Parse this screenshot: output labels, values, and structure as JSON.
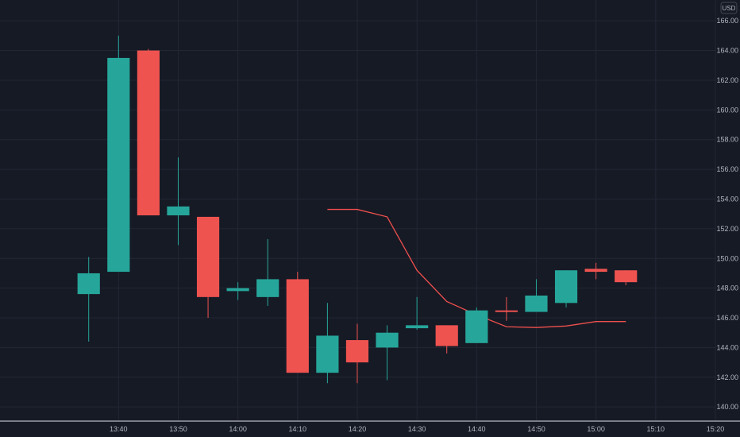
{
  "colors": {
    "background": "#161a25",
    "grid": "#232734",
    "up": "#26a69a",
    "down": "#ef5350",
    "line": "#f0504d",
    "axis_text": "#b2b5be"
  },
  "currency_label": "USD",
  "chart_data": {
    "type": "candlestick",
    "x_unit": "minutes",
    "candle_interval_minutes": 5,
    "xlim": [
      "13:22",
      "15:22"
    ],
    "ylim": [
      139.1,
      167.4
    ],
    "y_ticks": [
      "140.00",
      "142.00",
      "144.00",
      "146.00",
      "148.00",
      "150.00",
      "152.00",
      "154.00",
      "156.00",
      "158.00",
      "160.00",
      "162.00",
      "164.00",
      "166.00"
    ],
    "x_ticks": [
      "13:40",
      "13:50",
      "14:00",
      "14:10",
      "14:20",
      "14:30",
      "14:40",
      "14:50",
      "15:00",
      "15:10",
      "15:20"
    ],
    "candles": [
      {
        "time": "13:35",
        "open": 147.6,
        "high": 150.1,
        "low": 144.4,
        "close": 149.0
      },
      {
        "time": "13:40",
        "open": 149.1,
        "high": 165.0,
        "low": 149.1,
        "close": 163.5
      },
      {
        "time": "13:45",
        "open": 164.0,
        "high": 164.1,
        "low": 152.9,
        "close": 152.9
      },
      {
        "time": "13:50",
        "open": 152.9,
        "high": 156.8,
        "low": 150.9,
        "close": 153.5
      },
      {
        "time": "13:55",
        "open": 152.8,
        "high": 152.8,
        "low": 146.0,
        "close": 147.4
      },
      {
        "time": "14:00",
        "open": 147.8,
        "high": 148.4,
        "low": 147.2,
        "close": 148.0
      },
      {
        "time": "14:05",
        "open": 147.4,
        "high": 151.3,
        "low": 146.8,
        "close": 148.6
      },
      {
        "time": "14:10",
        "open": 148.6,
        "high": 149.1,
        "low": 142.3,
        "close": 142.3
      },
      {
        "time": "14:15",
        "open": 142.3,
        "high": 147.0,
        "low": 141.6,
        "close": 144.8
      },
      {
        "time": "14:20",
        "open": 144.5,
        "high": 145.6,
        "low": 141.6,
        "close": 143.0
      },
      {
        "time": "14:25",
        "open": 144.0,
        "high": 145.5,
        "low": 141.8,
        "close": 145.0
      },
      {
        "time": "14:30",
        "open": 145.3,
        "high": 147.4,
        "low": 145.2,
        "close": 145.5
      },
      {
        "time": "14:35",
        "open": 145.5,
        "high": 145.5,
        "low": 143.6,
        "close": 144.1
      },
      {
        "time": "14:40",
        "open": 144.3,
        "high": 146.7,
        "low": 144.3,
        "close": 146.5
      },
      {
        "time": "14:45",
        "open": 146.5,
        "high": 147.4,
        "low": 145.8,
        "close": 146.4
      },
      {
        "time": "14:50",
        "open": 146.4,
        "high": 148.6,
        "low": 146.4,
        "close": 147.5
      },
      {
        "time": "14:55",
        "open": 147.0,
        "high": 149.2,
        "low": 146.7,
        "close": 149.2
      },
      {
        "time": "15:00",
        "open": 149.3,
        "high": 149.7,
        "low": 148.6,
        "close": 149.1
      },
      {
        "time": "15:05",
        "open": 149.2,
        "high": 149.2,
        "low": 148.2,
        "close": 148.4
      }
    ],
    "line_series": {
      "x": [
        "14:15",
        "14:20",
        "14:25",
        "14:30",
        "14:35",
        "14:40",
        "14:45",
        "14:50",
        "14:55",
        "15:00",
        "15:05"
      ],
      "y": [
        153.3,
        153.3,
        152.8,
        149.2,
        147.1,
        146.2,
        145.4,
        145.35,
        145.45,
        145.75,
        145.75
      ]
    },
    "grid": true
  }
}
